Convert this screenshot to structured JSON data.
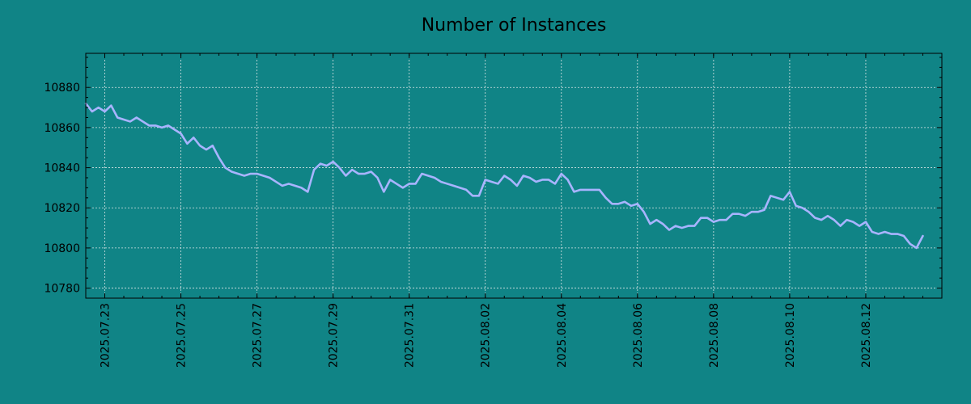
{
  "chart_data": {
    "type": "line",
    "title": "Number of Instances",
    "xlabel": "",
    "ylabel": "",
    "grid": true,
    "legend": "none",
    "x_axis_type": "date",
    "xlim": [
      "2025.07.22 12:00",
      "2025.08.13 24:00"
    ],
    "ylim": [
      10775,
      10897
    ],
    "x_ticks": [
      "2025.07.23",
      "2025.07.25",
      "2025.07.27",
      "2025.07.29",
      "2025.07.31",
      "2025.08.02",
      "2025.08.04",
      "2025.08.06",
      "2025.08.08",
      "2025.08.10",
      "2025.08.12"
    ],
    "y_ticks": [
      10780,
      10800,
      10820,
      10840,
      10860,
      10880
    ],
    "colors": {
      "background": "#108486",
      "line": "#a8b4ff",
      "grid": "#d8e4e4",
      "axis": "#000000"
    },
    "series": [
      {
        "points": [
          [
            "2025.07.22 12:00",
            10872
          ],
          [
            "2025.07.22 16:00",
            10868
          ],
          [
            "2025.07.22 20:00",
            10870
          ],
          [
            "2025.07.23 00:00",
            10868
          ],
          [
            "2025.07.23 04:00",
            10871
          ],
          [
            "2025.07.23 08:00",
            10865
          ],
          [
            "2025.07.23 12:00",
            10864
          ],
          [
            "2025.07.23 16:00",
            10863
          ],
          [
            "2025.07.23 20:00",
            10865
          ],
          [
            "2025.07.24 00:00",
            10863
          ],
          [
            "2025.07.24 04:00",
            10861
          ],
          [
            "2025.07.24 08:00",
            10861
          ],
          [
            "2025.07.24 12:00",
            10860
          ],
          [
            "2025.07.24 16:00",
            10861
          ],
          [
            "2025.07.24 20:00",
            10859
          ],
          [
            "2025.07.25 00:00",
            10857
          ],
          [
            "2025.07.25 04:00",
            10852
          ],
          [
            "2025.07.25 08:00",
            10855
          ],
          [
            "2025.07.25 12:00",
            10851
          ],
          [
            "2025.07.25 16:00",
            10849
          ],
          [
            "2025.07.25 20:00",
            10851
          ],
          [
            "2025.07.26 00:00",
            10845
          ],
          [
            "2025.07.26 04:00",
            10840
          ],
          [
            "2025.07.26 08:00",
            10838
          ],
          [
            "2025.07.26 12:00",
            10837
          ],
          [
            "2025.07.26 16:00",
            10836
          ],
          [
            "2025.07.26 20:00",
            10837
          ],
          [
            "2025.07.27 00:00",
            10837
          ],
          [
            "2025.07.27 04:00",
            10836
          ],
          [
            "2025.07.27 08:00",
            10835
          ],
          [
            "2025.07.27 12:00",
            10833
          ],
          [
            "2025.07.27 16:00",
            10831
          ],
          [
            "2025.07.27 20:00",
            10832
          ],
          [
            "2025.07.28 00:00",
            10831
          ],
          [
            "2025.07.28 04:00",
            10830
          ],
          [
            "2025.07.28 08:00",
            10828
          ],
          [
            "2025.07.28 12:00",
            10839
          ],
          [
            "2025.07.28 16:00",
            10842
          ],
          [
            "2025.07.28 20:00",
            10841
          ],
          [
            "2025.07.29 00:00",
            10843
          ],
          [
            "2025.07.29 04:00",
            10840
          ],
          [
            "2025.07.29 08:00",
            10836
          ],
          [
            "2025.07.29 12:00",
            10839
          ],
          [
            "2025.07.29 16:00",
            10837
          ],
          [
            "2025.07.29 20:00",
            10837
          ],
          [
            "2025.07.30 00:00",
            10838
          ],
          [
            "2025.07.30 04:00",
            10835
          ],
          [
            "2025.07.30 08:00",
            10828
          ],
          [
            "2025.07.30 12:00",
            10834
          ],
          [
            "2025.07.30 16:00",
            10832
          ],
          [
            "2025.07.30 20:00",
            10830
          ],
          [
            "2025.07.31 00:00",
            10832
          ],
          [
            "2025.07.31 04:00",
            10832
          ],
          [
            "2025.07.31 08:00",
            10837
          ],
          [
            "2025.07.31 12:00",
            10836
          ],
          [
            "2025.07.31 16:00",
            10835
          ],
          [
            "2025.07.31 20:00",
            10833
          ],
          [
            "2025.08.01 00:00",
            10832
          ],
          [
            "2025.08.01 04:00",
            10831
          ],
          [
            "2025.08.01 08:00",
            10830
          ],
          [
            "2025.08.01 12:00",
            10829
          ],
          [
            "2025.08.01 16:00",
            10826
          ],
          [
            "2025.08.01 20:00",
            10826
          ],
          [
            "2025.08.02 00:00",
            10834
          ],
          [
            "2025.08.02 04:00",
            10833
          ],
          [
            "2025.08.02 08:00",
            10832
          ],
          [
            "2025.08.02 12:00",
            10836
          ],
          [
            "2025.08.02 16:00",
            10834
          ],
          [
            "2025.08.02 20:00",
            10831
          ],
          [
            "2025.08.03 00:00",
            10836
          ],
          [
            "2025.08.03 04:00",
            10835
          ],
          [
            "2025.08.03 08:00",
            10833
          ],
          [
            "2025.08.03 12:00",
            10834
          ],
          [
            "2025.08.03 16:00",
            10834
          ],
          [
            "2025.08.03 20:00",
            10832
          ],
          [
            "2025.08.04 00:00",
            10837
          ],
          [
            "2025.08.04 04:00",
            10834
          ],
          [
            "2025.08.04 08:00",
            10828
          ],
          [
            "2025.08.04 12:00",
            10829
          ],
          [
            "2025.08.04 16:00",
            10829
          ],
          [
            "2025.08.04 20:00",
            10829
          ],
          [
            "2025.08.05 00:00",
            10829
          ],
          [
            "2025.08.05 04:00",
            10825
          ],
          [
            "2025.08.05 08:00",
            10822
          ],
          [
            "2025.08.05 12:00",
            10822
          ],
          [
            "2025.08.05 16:00",
            10823
          ],
          [
            "2025.08.05 20:00",
            10821
          ],
          [
            "2025.08.06 00:00",
            10822
          ],
          [
            "2025.08.06 04:00",
            10818
          ],
          [
            "2025.08.06 08:00",
            10812
          ],
          [
            "2025.08.06 12:00",
            10814
          ],
          [
            "2025.08.06 16:00",
            10812
          ],
          [
            "2025.08.06 20:00",
            10809
          ],
          [
            "2025.08.07 00:00",
            10811
          ],
          [
            "2025.08.07 04:00",
            10810
          ],
          [
            "2025.08.07 08:00",
            10811
          ],
          [
            "2025.08.07 12:00",
            10811
          ],
          [
            "2025.08.07 16:00",
            10815
          ],
          [
            "2025.08.07 20:00",
            10815
          ],
          [
            "2025.08.08 00:00",
            10813
          ],
          [
            "2025.08.08 04:00",
            10814
          ],
          [
            "2025.08.08 08:00",
            10814
          ],
          [
            "2025.08.08 12:00",
            10817
          ],
          [
            "2025.08.08 16:00",
            10817
          ],
          [
            "2025.08.08 20:00",
            10816
          ],
          [
            "2025.08.09 00:00",
            10818
          ],
          [
            "2025.08.09 04:00",
            10818
          ],
          [
            "2025.08.09 08:00",
            10819
          ],
          [
            "2025.08.09 12:00",
            10826
          ],
          [
            "2025.08.09 16:00",
            10825
          ],
          [
            "2025.08.09 20:00",
            10824
          ],
          [
            "2025.08.10 00:00",
            10828
          ],
          [
            "2025.08.10 04:00",
            10821
          ],
          [
            "2025.08.10 08:00",
            10820
          ],
          [
            "2025.08.10 12:00",
            10818
          ],
          [
            "2025.08.10 16:00",
            10815
          ],
          [
            "2025.08.10 20:00",
            10814
          ],
          [
            "2025.08.11 00:00",
            10816
          ],
          [
            "2025.08.11 04:00",
            10814
          ],
          [
            "2025.08.11 08:00",
            10811
          ],
          [
            "2025.08.11 12:00",
            10814
          ],
          [
            "2025.08.11 16:00",
            10813
          ],
          [
            "2025.08.11 20:00",
            10811
          ],
          [
            "2025.08.12 00:00",
            10813
          ],
          [
            "2025.08.12 04:00",
            10808
          ],
          [
            "2025.08.12 08:00",
            10807
          ],
          [
            "2025.08.12 12:00",
            10808
          ],
          [
            "2025.08.12 16:00",
            10807
          ],
          [
            "2025.08.12 20:00",
            10807
          ],
          [
            "2025.08.13 00:00",
            10806
          ],
          [
            "2025.08.13 04:00",
            10802
          ],
          [
            "2025.08.13 08:00",
            10800
          ],
          [
            "2025.08.13 12:00",
            10806
          ]
        ]
      }
    ]
  }
}
